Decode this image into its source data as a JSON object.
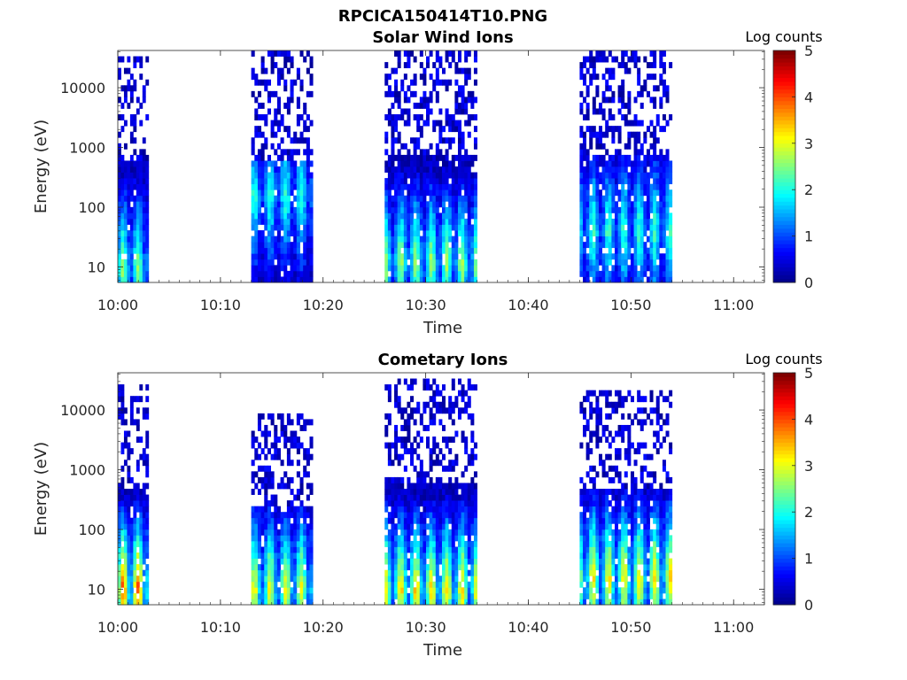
{
  "figure_title": "RPCICA150414T10.PNG",
  "colormap": [
    "#00008f",
    "#0000ff",
    "#0080ff",
    "#00ffff",
    "#80ff80",
    "#ffff00",
    "#ff8000",
    "#ff0000",
    "#800000"
  ],
  "chart_data": [
    {
      "type": "heatmap",
      "title": "Solar Wind Ions",
      "xlabel": "Time",
      "ylabel": "Energy (eV)",
      "xlim": [
        "10:00",
        "11:03"
      ],
      "x_ticks": [
        "10:00",
        "10:10",
        "10:20",
        "10:30",
        "10:40",
        "10:50",
        "11:00"
      ],
      "ylim": [
        5.5,
        42000
      ],
      "y_scale": "log",
      "y_ticks": [
        10,
        100,
        1000,
        10000
      ],
      "y_tick_labels": [
        "10",
        "100",
        "1000",
        "10000"
      ],
      "colorbar": {
        "label": "Log counts",
        "range": [
          0,
          5
        ],
        "ticks": [
          "0",
          "1",
          "2",
          "3",
          "4",
          "5"
        ]
      },
      "regions": [
        {
          "start": "10:00",
          "end": "10:03",
          "peak_log_counts": 2.4,
          "peak_energy_eV": 10,
          "top_energy_eV": 30000
        },
        {
          "start": "10:13",
          "end": "10:19",
          "peak_log_counts": 1.9,
          "peak_energy_eV": 150,
          "top_energy_eV": 38000
        },
        {
          "start": "10:26",
          "end": "10:35",
          "peak_log_counts": 2.5,
          "peak_energy_eV": 12,
          "top_energy_eV": 42000
        },
        {
          "start": "10:45",
          "end": "10:54",
          "peak_log_counts": 2.0,
          "peak_energy_eV": 40,
          "top_energy_eV": 42000
        }
      ]
    },
    {
      "type": "heatmap",
      "title": "Cometary Ions",
      "xlabel": "Time",
      "ylabel": "Energy (eV)",
      "xlim": [
        "10:00",
        "11:03"
      ],
      "x_ticks": [
        "10:00",
        "10:10",
        "10:20",
        "10:30",
        "10:40",
        "10:50",
        "11:00"
      ],
      "ylim": [
        5.5,
        42000
      ],
      "y_scale": "log",
      "y_ticks": [
        10,
        100,
        1000,
        10000
      ],
      "y_tick_labels": [
        "10",
        "100",
        "1000",
        "10000"
      ],
      "colorbar": {
        "label": "Log counts",
        "range": [
          0,
          5
        ],
        "ticks": [
          "0",
          "1",
          "2",
          "3",
          "4",
          "5"
        ]
      },
      "regions": [
        {
          "start": "10:00",
          "end": "10:03",
          "peak_log_counts": 3.8,
          "peak_energy_eV": 10,
          "top_energy_eV": 25000
        },
        {
          "start": "10:13",
          "end": "10:19",
          "peak_log_counts": 2.9,
          "peak_energy_eV": 10,
          "top_energy_eV": 8000
        },
        {
          "start": "10:26",
          "end": "10:35",
          "peak_log_counts": 3.2,
          "peak_energy_eV": 10,
          "top_energy_eV": 33000
        },
        {
          "start": "10:45",
          "end": "10:54",
          "peak_log_counts": 3.1,
          "peak_energy_eV": 15,
          "top_energy_eV": 20000
        }
      ]
    }
  ]
}
